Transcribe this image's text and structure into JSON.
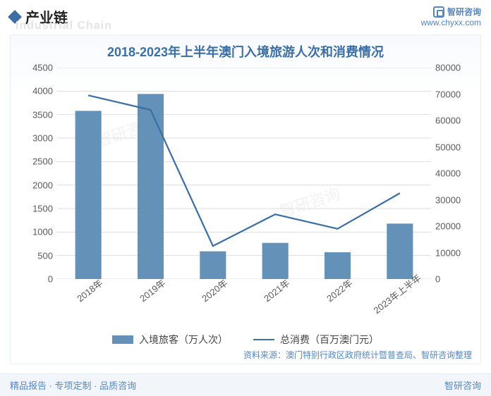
{
  "header": {
    "section_label": "产业链",
    "ghost_label": "Industrial Chain",
    "brand_name": "智研咨询",
    "brand_url": "www.chyxx.com"
  },
  "chart": {
    "type": "bar+line",
    "title": "2018-2023年上半年澳门入境旅游人次和消费情况",
    "categories": [
      "2018年",
      "2019年",
      "2020年",
      "2021年",
      "2022年",
      "2023年上半年"
    ],
    "bar_series": {
      "name": "入境旅客（万人次）",
      "values": [
        3580,
        3940,
        590,
        770,
        570,
        1180
      ],
      "color": "#6491b7",
      "bar_width": 0.42
    },
    "line_series": {
      "name": "总消费（百万澳门元）",
      "values": [
        69500,
        64000,
        12500,
        24500,
        19000,
        32500
      ],
      "color": "#3a6ea5",
      "line_width": 2.2
    },
    "y1_axis": {
      "min": 0,
      "max": 4500,
      "step": 500,
      "ticks": [
        0,
        500,
        1000,
        1500,
        2000,
        2500,
        3000,
        3500,
        4000,
        4500
      ]
    },
    "y2_axis": {
      "min": 0,
      "max": 80000,
      "step": 10000,
      "ticks": [
        0,
        10000,
        20000,
        30000,
        40000,
        50000,
        60000,
        70000,
        80000
      ]
    },
    "grid_color": "#d8dde3",
    "background_color": "#ffffff",
    "title_fontsize": 18,
    "label_fontsize": 13,
    "x_label_rotation": -38
  },
  "source_text": "资料来源：澳门特别行政区政府统计暨普查局、智研咨询整理",
  "footer": {
    "left": "精品报告 · 专项定制 · 品质咨询",
    "right": "智研咨询"
  },
  "watermark_text": "智研咨询"
}
